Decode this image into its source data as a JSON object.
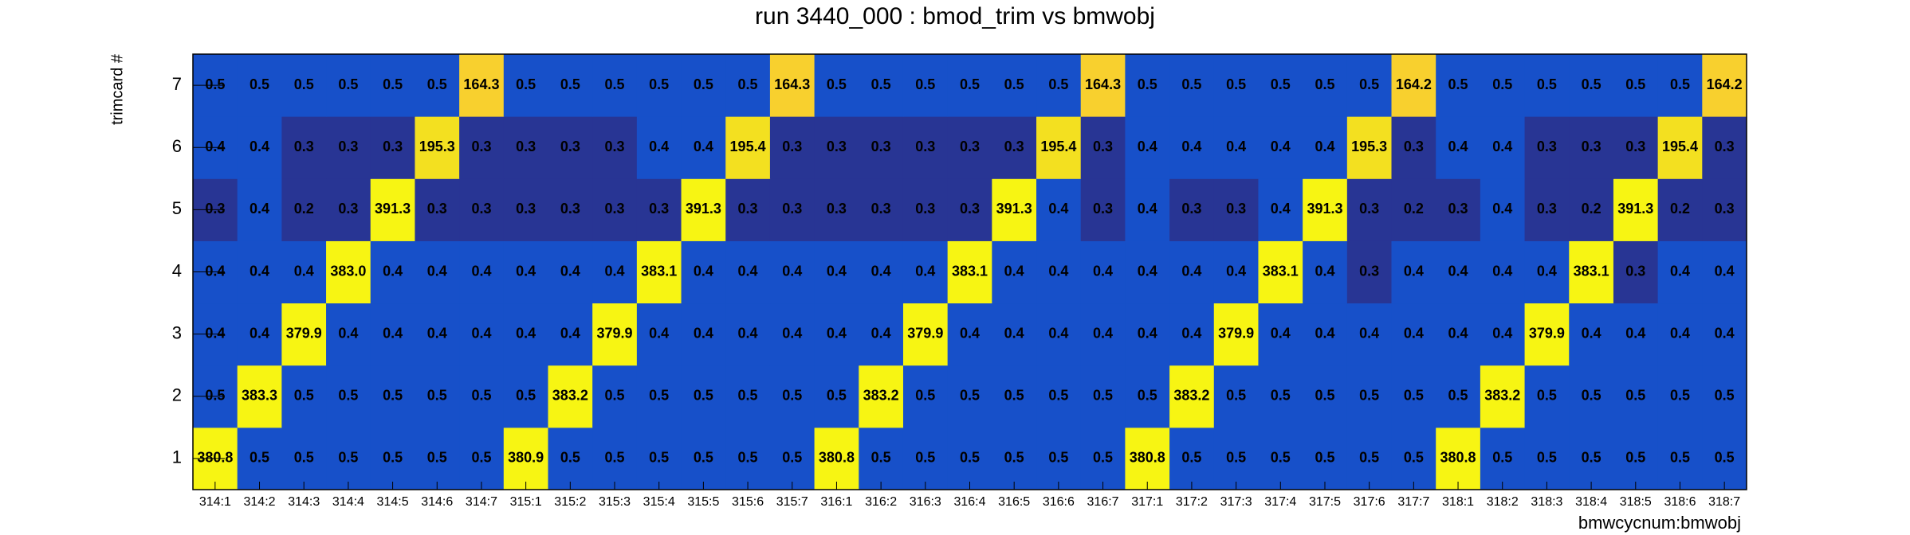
{
  "chart_data": {
    "type": "heatmap",
    "title": "run 3440_000 : bmod_trim vs bmwobj",
    "x_label": "bmwcycnum:bmwobj",
    "y_label": "trimcard #",
    "x_categories": [
      "314:1",
      "314:2",
      "314:3",
      "314:4",
      "314:5",
      "314:6",
      "314:7",
      "315:1",
      "315:2",
      "315:3",
      "315:4",
      "315:5",
      "315:6",
      "315:7",
      "316:1",
      "316:2",
      "316:3",
      "316:4",
      "316:5",
      "316:6",
      "316:7",
      "317:1",
      "317:2",
      "317:3",
      "317:4",
      "317:5",
      "317:6",
      "317:7",
      "318:1",
      "318:2",
      "318:3",
      "318:4",
      "318:5",
      "318:6",
      "318:7"
    ],
    "y_categories": [
      1,
      2,
      3,
      4,
      5,
      6,
      7
    ],
    "values": [
      [
        380.8,
        0.5,
        0.5,
        0.5,
        0.5,
        0.5,
        0.5,
        380.9,
        0.5,
        0.5,
        0.5,
        0.5,
        0.5,
        0.5,
        380.8,
        0.5,
        0.5,
        0.5,
        0.5,
        0.5,
        0.5,
        380.8,
        0.5,
        0.5,
        0.5,
        0.5,
        0.5,
        0.5,
        380.8,
        0.5,
        0.5,
        0.5,
        0.5,
        0.5,
        0.5
      ],
      [
        0.5,
        383.3,
        0.5,
        0.5,
        0.5,
        0.5,
        0.5,
        0.5,
        383.2,
        0.5,
        0.5,
        0.5,
        0.5,
        0.5,
        0.5,
        383.2,
        0.5,
        0.5,
        0.5,
        0.5,
        0.5,
        0.5,
        383.2,
        0.5,
        0.5,
        0.5,
        0.5,
        0.5,
        0.5,
        383.2,
        0.5,
        0.5,
        0.5,
        0.5,
        0.5
      ],
      [
        0.4,
        0.4,
        379.9,
        0.4,
        0.4,
        0.4,
        0.4,
        0.4,
        0.4,
        379.9,
        0.4,
        0.4,
        0.4,
        0.4,
        0.4,
        0.4,
        379.9,
        0.4,
        0.4,
        0.4,
        0.4,
        0.4,
        0.4,
        379.9,
        0.4,
        0.4,
        0.4,
        0.4,
        0.4,
        0.4,
        379.9,
        0.4,
        0.4,
        0.4,
        0.4
      ],
      [
        0.4,
        0.4,
        0.4,
        {
          "value": 383.0,
          "label": "383.0"
        },
        0.4,
        0.4,
        0.4,
        0.4,
        0.4,
        0.4,
        383.1,
        0.4,
        0.4,
        0.4,
        0.4,
        0.4,
        0.4,
        383.1,
        0.4,
        0.4,
        0.4,
        0.4,
        0.4,
        0.4,
        383.1,
        0.4,
        0.3,
        0.4,
        0.4,
        0.4,
        0.4,
        383.1,
        0.3,
        0.4,
        0.4
      ],
      [
        0.3,
        0.4,
        0.2,
        0.3,
        391.3,
        0.3,
        0.3,
        0.3,
        0.3,
        0.3,
        0.3,
        391.3,
        0.3,
        0.3,
        0.3,
        0.3,
        0.3,
        0.3,
        391.3,
        0.4,
        0.3,
        0.4,
        0.3,
        0.3,
        0.4,
        391.3,
        0.3,
        0.2,
        0.3,
        0.4,
        0.3,
        0.2,
        391.3,
        0.2,
        0.3
      ],
      [
        0.4,
        0.4,
        0.3,
        0.3,
        0.3,
        195.3,
        0.3,
        0.3,
        0.3,
        0.3,
        0.4,
        0.4,
        195.4,
        0.3,
        0.3,
        0.3,
        0.3,
        0.3,
        0.3,
        195.4,
        0.3,
        0.4,
        0.4,
        0.4,
        0.4,
        0.4,
        195.3,
        0.3,
        0.4,
        0.4,
        0.3,
        0.3,
        0.3,
        195.4,
        0.3
      ],
      [
        0.5,
        0.5,
        0.5,
        0.5,
        0.5,
        0.5,
        164.3,
        0.5,
        0.5,
        0.5,
        0.5,
        0.5,
        0.5,
        164.3,
        0.5,
        0.5,
        0.5,
        0.5,
        0.5,
        0.5,
        164.3,
        0.5,
        0.5,
        0.5,
        0.5,
        0.5,
        0.5,
        164.2,
        0.5,
        0.5,
        0.5,
        0.5,
        0.5,
        0.5,
        164.2
      ]
    ],
    "log_z": true,
    "zlim": [
      0.25,
      400
    ],
    "palette": [
      "#283594",
      "#1750c9",
      "#1750c9",
      "#1a5ad0",
      "#1f66d6",
      "#2474d8",
      "#2b84d6",
      "#3594cc",
      "#42a2bf",
      "#55aeae",
      "#6cb89c",
      "#86bf88",
      "#a1c373",
      "#bbc660",
      "#d2c94e",
      "#e3cb40",
      "#f0cd34",
      "#f8d02e",
      "#f3e020",
      "#f7f513"
    ]
  }
}
